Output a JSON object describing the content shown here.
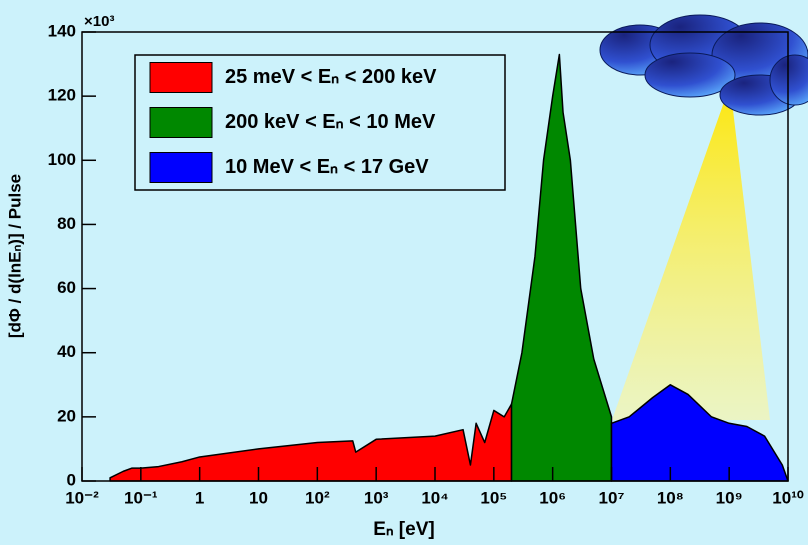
{
  "chart_data": {
    "type": "area",
    "x_label": "Eₙ  [eV]",
    "y_label": "[dΦ / d(lnEₙ)] / Pulse",
    "y_multiplier": "×10³",
    "xscale": "log",
    "xlim": [
      0.01,
      10000000000
    ],
    "ylim": [
      0,
      140
    ],
    "xticks": [
      {
        "value": 0.01,
        "label": "10⁻²"
      },
      {
        "value": 0.1,
        "label": "10⁻¹"
      },
      1,
      10,
      {
        "value": 100,
        "label": "10²"
      },
      {
        "value": 1000,
        "label": "10³"
      },
      {
        "value": 10000,
        "label": "10⁴"
      },
      {
        "value": 100000,
        "label": "10⁵"
      },
      {
        "value": 1000000,
        "label": "10⁶"
      },
      {
        "value": 10000000,
        "label": "10⁷"
      },
      {
        "value": 100000000,
        "label": "10⁸"
      },
      {
        "value": 1000000000,
        "label": "10⁹"
      },
      {
        "value": 10000000000,
        "label": "10¹⁰"
      }
    ],
    "yticks": [
      0,
      20,
      40,
      60,
      80,
      100,
      120,
      140
    ],
    "legend": "top-left",
    "series": [
      {
        "name": "25 meV < Eₙ < 200 keV",
        "color": "#ff0000",
        "x": [
          0.03,
          0.05,
          0.07,
          0.1,
          0.2,
          0.5,
          1,
          10,
          100,
          400,
          450,
          1000,
          10000,
          30000,
          40000,
          50000,
          70000,
          100000,
          150000,
          200000
        ],
        "values": [
          1,
          3,
          4,
          4,
          4.5,
          6,
          7.5,
          10,
          12,
          12.5,
          9,
          13,
          14,
          16,
          5,
          18,
          12,
          22,
          20,
          24
        ]
      },
      {
        "name": "200 keV < Eₙ < 10 MeV",
        "color": "#008800",
        "x": [
          200000,
          300000,
          500000,
          700000,
          1000000,
          1300000,
          1500000,
          2000000,
          3000000,
          5000000,
          10000000
        ],
        "values": [
          24,
          40,
          70,
          100,
          120,
          133,
          115,
          100,
          60,
          38,
          20
        ]
      },
      {
        "name": "10 MeV < Eₙ < 17 GeV",
        "color": "#0000ff",
        "x": [
          10000000,
          20000000,
          50000000,
          100000000,
          200000000,
          500000000,
          1000000000,
          2000000000,
          4000000000,
          8000000000,
          10000000000
        ],
        "values": [
          18,
          20,
          26,
          30,
          27,
          20,
          18,
          17,
          14,
          5,
          0
        ]
      }
    ]
  }
}
